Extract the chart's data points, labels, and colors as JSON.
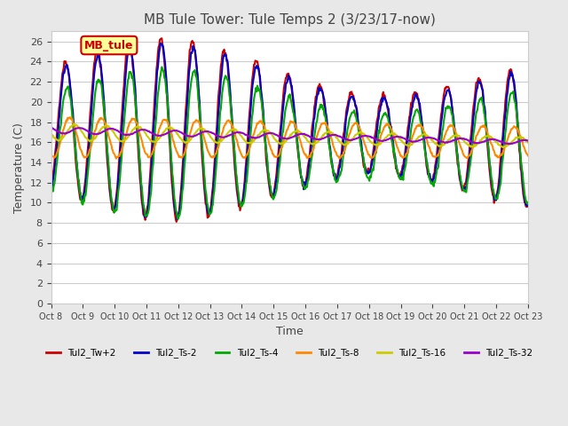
{
  "title": "MB Tule Tower: Tule Temps 2 (3/23/17-now)",
  "xlabel": "Time",
  "ylabel": "Temperature (C)",
  "ylim": [
    0,
    27
  ],
  "yticks": [
    0,
    2,
    4,
    6,
    8,
    10,
    12,
    14,
    16,
    18,
    20,
    22,
    24,
    26
  ],
  "xtick_labels": [
    "Oct 8",
    "Oct 9",
    "Oct 10",
    "Oct 11",
    "Oct 12",
    "Oct 13",
    "Oct 14",
    "Oct 15",
    "Oct 16",
    "Oct 17",
    "Oct 18",
    "Oct 19",
    "Oct 20",
    "Oct 21",
    "Oct 22",
    "Oct 23"
  ],
  "series_names": [
    "Tul2_Tw+2",
    "Tul2_Ts-2",
    "Tul2_Ts-4",
    "Tul2_Ts-8",
    "Tul2_Ts-16",
    "Tul2_Ts-32"
  ],
  "series_colors": [
    "#cc0000",
    "#0000cc",
    "#00aa00",
    "#ff8800",
    "#cccc00",
    "#9900cc"
  ],
  "series_linewidths": [
    1.5,
    1.5,
    1.5,
    1.5,
    1.5,
    1.5
  ],
  "legend_text": "MB_tule",
  "legend_bg": "#ffff99",
  "legend_border": "#cc0000",
  "background_color": "#e8e8e8",
  "plot_bg": "#ffffff",
  "grid_color": "#cccccc",
  "num_days": 15,
  "samples_per_day": 48
}
